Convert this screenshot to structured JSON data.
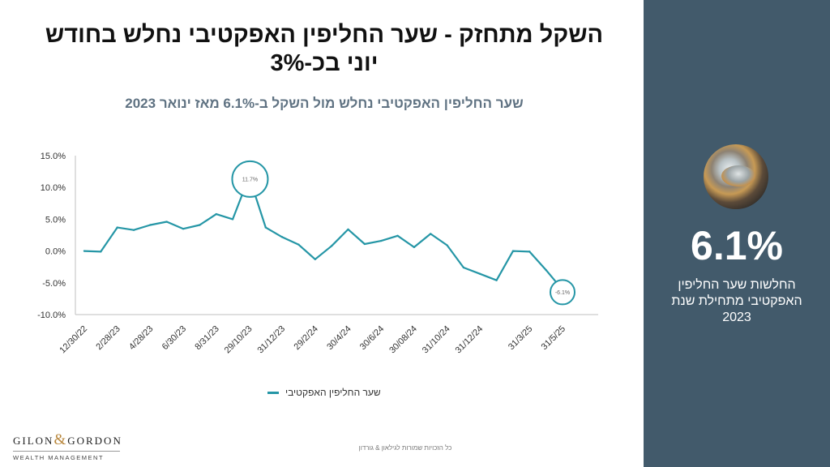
{
  "title": "השקל מתחזק - שער החליפין האפקטיבי נחלש בחודש יוני בכ-3%",
  "subtitle": "שער החליפין  האפקטיבי נחלש מול השקל ב-6.1% מאז ינואר 2023",
  "sidebar": {
    "big_number": "6.1%",
    "lines": [
      "החלשות שער החליפין",
      "האפקטיבי מתחילת שנת",
      "2023"
    ],
    "accent": "#425a6b"
  },
  "footer": "כל הזכויות שמורות לגילאון & גורדון",
  "logo": {
    "left": "GILON",
    "amp": "&",
    "right": "GORDON",
    "sub": "WEALTH MANAGEMENT"
  },
  "chart_data": {
    "type": "line",
    "title": "",
    "xlabel": "",
    "ylabel": "",
    "ylim": [
      -10,
      15
    ],
    "yticks": [
      "15.0%",
      "10.0%",
      "5.0%",
      "0.0%",
      "-5.0%",
      "-10.0%"
    ],
    "ytick_values": [
      15,
      10,
      5,
      0,
      -5,
      -10
    ],
    "xtick_labels": [
      "12/30/22",
      "2/28/23",
      "4/28/23",
      "6/30/23",
      "8/31/23",
      "29/10/23",
      "31/12/23",
      "29/2/24",
      "30/4/24",
      "30/6/24",
      "30/08/24",
      "31/10/24",
      "31/12/24",
      "31/3/25",
      "31/5/25"
    ],
    "xtick_index": [
      0,
      2,
      4,
      6,
      8,
      10,
      12,
      14,
      16,
      18,
      20,
      22,
      24,
      27,
      29
    ],
    "series": [
      {
        "name": "שער החליפין האפקטיבי",
        "color": "#2596a6",
        "values": [
          0.0,
          -0.1,
          3.7,
          3.3,
          4.1,
          4.6,
          3.5,
          4.1,
          5.8,
          5.0,
          11.7,
          3.7,
          2.2,
          1.0,
          -1.3,
          0.8,
          3.4,
          1.1,
          1.6,
          2.4,
          0.6,
          2.7,
          0.9,
          -2.6,
          -3.6,
          -4.6,
          0.0,
          -0.1,
          -3.0,
          -6.1
        ]
      }
    ],
    "annotations": [
      {
        "index": 10,
        "label": "11.7%"
      },
      {
        "index": 29,
        "label": "-6.1%"
      }
    ],
    "grid": false,
    "legend_position": "bottom"
  }
}
